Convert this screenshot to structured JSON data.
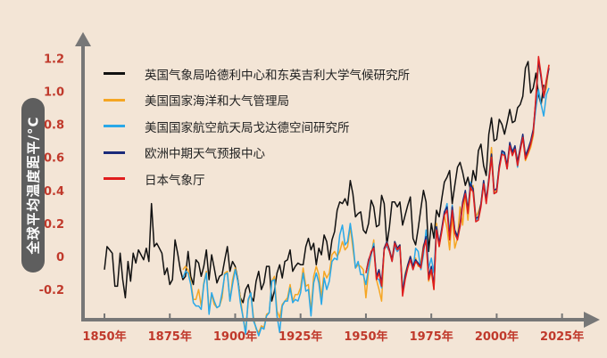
{
  "chart_data": {
    "type": "line",
    "ylabel": "全球平均温度距平/°C",
    "xlabel": "",
    "title": "",
    "xlim": [
      1840,
      2030
    ],
    "ylim": [
      -0.42,
      1.32
    ],
    "x_ticks": [
      {
        "value": 1850,
        "label": "1850年"
      },
      {
        "value": 1875,
        "label": "1875年"
      },
      {
        "value": 1900,
        "label": "1900年"
      },
      {
        "value": 1925,
        "label": "1925年"
      },
      {
        "value": 1950,
        "label": "1950年"
      },
      {
        "value": 1975,
        "label": "1975年"
      },
      {
        "value": 2000,
        "label": "2000年"
      },
      {
        "value": 2025,
        "label": "2025年"
      }
    ],
    "y_ticks": [
      {
        "value": -0.2,
        "label": "-0.2"
      },
      {
        "value": 0,
        "label": "0"
      },
      {
        "value": 0.2,
        "label": "0.2"
      },
      {
        "value": 0.4,
        "label": "0.4"
      },
      {
        "value": 0.6,
        "label": "0.6"
      },
      {
        "value": 0.8,
        "label": "0.8"
      },
      {
        "value": 1.0,
        "label": "1.0"
      },
      {
        "value": 1.2,
        "label": "1.2"
      }
    ],
    "grid": false,
    "legend_position": "top-left",
    "series": [
      {
        "name": "英国气象局哈德利中心和东英吉利大学气候研究所",
        "color": "#111111",
        "start_year": 1850,
        "values": [
          -0.08,
          0.06,
          0.04,
          0.02,
          -0.18,
          -0.18,
          0.02,
          -0.14,
          -0.25,
          -0.03,
          -0.15,
          0.02,
          -0.04,
          0.04,
          0.01,
          -0.02,
          0.05,
          -0.03,
          0.32,
          0.06,
          0.08,
          0.05,
          0.02,
          -0.11,
          -0.07,
          -0.17,
          -0.14,
          0.1,
          0.02,
          -0.08,
          -0.14,
          -0.12,
          0.03,
          -0.12,
          -0.17,
          -0.02,
          -0.04,
          -0.12,
          -0.06,
          0.04,
          -0.14,
          0.01,
          -0.07,
          -0.16,
          -0.12,
          -0.11,
          -0.02,
          0.06,
          -0.09,
          -0.03,
          -0.06,
          -0.14,
          -0.25,
          -0.28,
          -0.2,
          -0.17,
          -0.24,
          -0.27,
          -0.15,
          -0.09,
          -0.2,
          -0.16,
          -0.06,
          -0.06,
          -0.27,
          -0.21,
          -0.1,
          -0.05,
          -0.13,
          -0.03,
          -0.02,
          0.04,
          -0.09,
          -0.06,
          -0.04,
          -0.05,
          -0.05,
          0.06,
          0.11,
          0.04,
          0.08,
          -0.05,
          0.05,
          0.01,
          0.13,
          0.09,
          -0.02,
          0.1,
          0.15,
          0.28,
          0.33,
          0.32,
          0.35,
          0.31,
          0.46,
          0.38,
          0.24,
          0.26,
          0.27,
          0.16,
          0.14,
          0.2,
          0.34,
          0.3,
          0.18,
          0.19,
          0.37,
          0.32,
          0.07,
          0.18,
          0.33,
          0.33,
          0.3,
          0.33,
          0.19,
          0.25,
          0.31,
          0.36,
          0.11,
          0.07,
          0.17,
          0.29,
          0.4,
          0.33,
          0.03,
          0.2,
          0.11,
          0.28,
          0.24,
          0.35,
          0.45,
          0.48,
          0.52,
          0.32,
          0.43,
          0.54,
          0.57,
          0.51,
          0.43,
          0.48,
          0.4,
          0.52,
          0.46,
          0.64,
          0.68,
          0.55,
          0.49,
          0.74,
          0.84,
          0.7,
          0.71,
          0.83,
          0.8,
          0.74,
          0.81,
          0.89,
          0.81,
          0.82,
          0.9,
          0.92,
          0.97,
          1.14,
          1.18,
          0.99,
          1.02,
          1.11,
          0.98,
          0.92,
          1.04
        ]
      },
      {
        "name": "美国国家海洋和大气管理局",
        "color": "#f5a623",
        "start_year": 1880,
        "values": [
          -0.08,
          -0.06,
          -0.08,
          -0.15,
          -0.26,
          -0.26,
          -0.2,
          -0.3,
          -0.16,
          -0.09,
          -0.33,
          -0.23,
          -0.29,
          -0.31,
          -0.3,
          -0.25,
          -0.1,
          -0.09,
          -0.27,
          -0.14,
          -0.07,
          -0.15,
          -0.25,
          -0.37,
          -0.45,
          -0.27,
          -0.22,
          -0.37,
          -0.44,
          -0.46,
          -0.42,
          -0.43,
          -0.35,
          -0.34,
          -0.15,
          -0.12,
          -0.33,
          -0.37,
          -0.29,
          -0.27,
          -0.25,
          -0.17,
          -0.27,
          -0.23,
          -0.23,
          -0.19,
          -0.07,
          -0.18,
          -0.17,
          -0.33,
          -0.12,
          -0.06,
          -0.11,
          -0.25,
          -0.09,
          -0.13,
          -0.1,
          0.01,
          0.03,
          0,
          0.03,
          0.09,
          0.04,
          0.06,
          0.18,
          0.05,
          -0.07,
          -0.05,
          -0.06,
          -0.08,
          -0.25,
          -0.09,
          0.01,
          0.1,
          -0.14,
          -0.2,
          -0.27,
          0.05,
          0.09,
          0.04,
          -0.02,
          0.09,
          0.05,
          0.07,
          -0.2,
          -0.1,
          -0.05,
          0,
          -0.06,
          -0.01,
          -0.06,
          -0.04,
          0.07,
          0.1,
          -0.15,
          -0.09,
          -0.2,
          0.2,
          0.06,
          0.16,
          0.25,
          0.17,
          0.04,
          0.25,
          0.05,
          0.11,
          0.3,
          0.19,
          0.38,
          0.22,
          0.41,
          0.43,
          0.24,
          0.27,
          0.32,
          0.44,
          0.34,
          0.47,
          0.66,
          0.39,
          0.4,
          0.55,
          0.63,
          0.62,
          0.53,
          0.68,
          0.62,
          0.66,
          0.58,
          0.65,
          0.73,
          0.58,
          0.62,
          0.66,
          0.73,
          0.95,
          1.17,
          1.09,
          0.97,
          1.02,
          1.16
        ]
      },
      {
        "name": "美国国家航空航天局戈达德空间研究所",
        "color": "#29a8e8",
        "start_year": 1880,
        "values": [
          -0.13,
          -0.09,
          -0.1,
          -0.17,
          -0.28,
          -0.3,
          -0.3,
          -0.32,
          -0.17,
          -0.1,
          -0.35,
          -0.22,
          -0.27,
          -0.31,
          -0.3,
          -0.22,
          -0.11,
          -0.1,
          -0.27,
          -0.17,
          -0.08,
          -0.15,
          -0.28,
          -0.37,
          -0.47,
          -0.26,
          -0.22,
          -0.39,
          -0.43,
          -0.48,
          -0.43,
          -0.44,
          -0.36,
          -0.34,
          -0.15,
          -0.14,
          -0.36,
          -0.46,
          -0.3,
          -0.27,
          -0.27,
          -0.19,
          -0.28,
          -0.26,
          -0.27,
          -0.22,
          -0.1,
          -0.21,
          -0.2,
          -0.36,
          -0.16,
          -0.1,
          -0.16,
          -0.29,
          -0.13,
          -0.2,
          -0.15,
          -0.03,
          -0.01,
          -0.02,
          0.13,
          0.19,
          0.07,
          0.09,
          0.2,
          0.09,
          -0.07,
          -0.03,
          -0.11,
          -0.11,
          -0.17,
          -0.07,
          0.01,
          0.08,
          -0.13,
          -0.14,
          -0.19,
          0.05,
          0.06,
          0.03,
          -0.03,
          0.06,
          0.03,
          0.05,
          -0.2,
          -0.11,
          -0.06,
          -0.02,
          -0.08,
          0.05,
          0.03,
          -0.08,
          0.01,
          0.16,
          -0.07,
          -0.01,
          -0.1,
          0.18,
          0.07,
          0.16,
          0.26,
          0.32,
          0.14,
          0.31,
          0.16,
          0.12,
          0.18,
          0.32,
          0.39,
          0.27,
          0.45,
          0.4,
          0.22,
          0.23,
          0.31,
          0.45,
          0.33,
          0.46,
          0.61,
          0.38,
          0.39,
          0.54,
          0.63,
          0.62,
          0.53,
          0.68,
          0.64,
          0.66,
          0.54,
          0.65,
          0.72,
          0.61,
          0.65,
          0.68,
          0.75,
          0.9,
          1.01,
          0.92,
          0.85,
          0.98,
          1.02
        ]
      },
      {
        "name": "欧洲中期天气预报中心",
        "color": "#1a2a7a",
        "start_year": 1950,
        "values": [
          -0.1,
          -0.02,
          0.02,
          0.06,
          -0.12,
          -0.08,
          -0.16,
          0.05,
          0.09,
          0.04,
          -0.02,
          0.09,
          0.05,
          0.07,
          -0.22,
          -0.12,
          -0.05,
          0,
          -0.06,
          -0.02,
          -0.04,
          -0.06,
          0.06,
          0.12,
          -0.12,
          -0.06,
          -0.18,
          0.18,
          0.08,
          0.17,
          0.27,
          0.3,
          0.12,
          0.3,
          0.16,
          0.12,
          0.2,
          0.33,
          0.4,
          0.28,
          0.44,
          0.41,
          0.23,
          0.24,
          0.32,
          0.46,
          0.34,
          0.47,
          0.62,
          0.4,
          0.41,
          0.55,
          0.64,
          0.63,
          0.55,
          0.69,
          0.63,
          0.67,
          0.57,
          0.66,
          0.74,
          0.61,
          0.65,
          0.7,
          0.77,
          0.95,
          1.19,
          1.08,
          0.96,
          1.06,
          1.14
        ]
      },
      {
        "name": "日本气象厅",
        "color": "#e01d1d",
        "start_year": 1950,
        "values": [
          -0.1,
          -0.03,
          0.03,
          0.05,
          -0.14,
          -0.1,
          -0.18,
          0.04,
          0.08,
          0.03,
          -0.03,
          0.08,
          0.04,
          0.06,
          -0.24,
          -0.14,
          -0.07,
          -0.02,
          -0.08,
          -0.03,
          -0.05,
          -0.07,
          0.04,
          0.1,
          -0.14,
          -0.08,
          -0.2,
          0.16,
          0.06,
          0.15,
          0.25,
          0.28,
          0.1,
          0.28,
          0.14,
          0.1,
          0.18,
          0.31,
          0.38,
          0.26,
          0.42,
          0.39,
          0.21,
          0.22,
          0.3,
          0.44,
          0.32,
          0.45,
          0.6,
          0.38,
          0.39,
          0.53,
          0.62,
          0.61,
          0.53,
          0.67,
          0.61,
          0.65,
          0.55,
          0.64,
          0.72,
          0.59,
          0.63,
          0.68,
          0.75,
          0.97,
          1.21,
          1.1,
          0.97,
          1.07,
          1.16
        ]
      }
    ]
  }
}
